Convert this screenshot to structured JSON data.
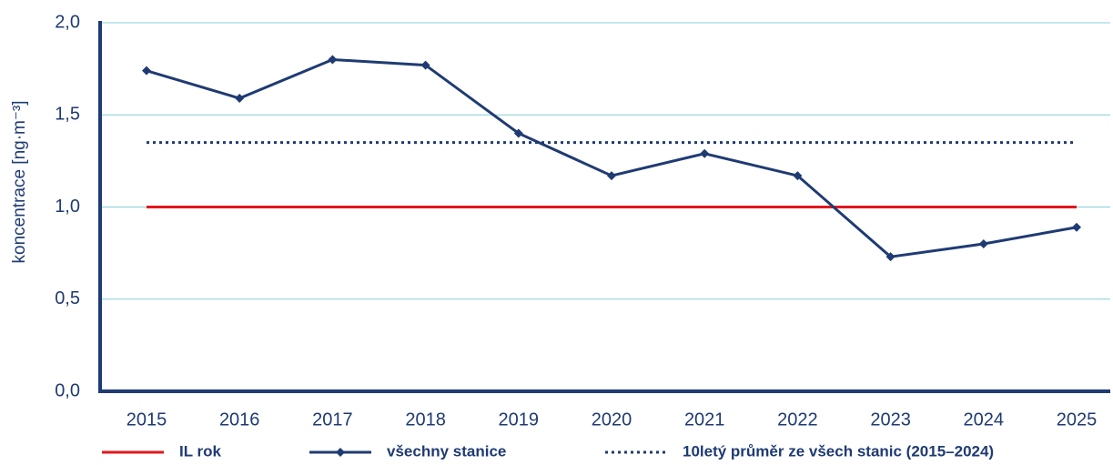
{
  "chart_data": {
    "type": "line",
    "y_label": "koncentrace [ng·m⁻³]",
    "categories": [
      "2015",
      "2016",
      "2017",
      "2018",
      "2019",
      "2020",
      "2021",
      "2022",
      "2023",
      "2024",
      "2025"
    ],
    "series": [
      {
        "name": "IL rok",
        "color": "#e3161b",
        "style": "solid",
        "markers": false,
        "values": [
          1.0,
          1.0,
          1.0,
          1.0,
          1.0,
          1.0,
          1.0,
          1.0,
          1.0,
          1.0,
          1.0
        ]
      },
      {
        "name": "všechny stanice",
        "color": "#1f3b73",
        "style": "solid",
        "markers": true,
        "values": [
          1.74,
          1.59,
          1.8,
          1.77,
          1.4,
          1.17,
          1.29,
          1.17,
          0.73,
          0.8,
          0.89
        ]
      },
      {
        "name": "10letý průměr ze všech stanic (2015–2024)",
        "color": "#1f3b73",
        "style": "dotted",
        "markers": false,
        "values": [
          1.35,
          1.35,
          1.35,
          1.35,
          1.35,
          1.35,
          1.35,
          1.35,
          1.35,
          1.35,
          1.35
        ]
      }
    ],
    "ylim": [
      0,
      2
    ],
    "yticks": [
      {
        "value": 0,
        "label": "0,0"
      },
      {
        "value": 0.5,
        "label": "0,5"
      },
      {
        "value": 1,
        "label": "1,0"
      },
      {
        "value": 1.5,
        "label": "1,5"
      },
      {
        "value": 2,
        "label": "2,0"
      }
    ],
    "grid": true,
    "legend": "bottom"
  }
}
